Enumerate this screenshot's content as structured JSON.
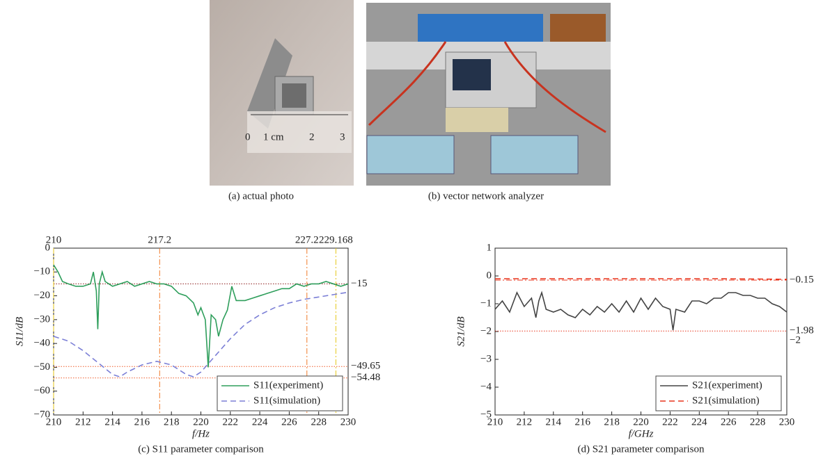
{
  "photos": [
    {
      "caption": "(a) actual photo"
    },
    {
      "caption": "(b) vector network analyzer"
    }
  ],
  "chart_data": [
    {
      "type": "line",
      "caption": "(c) S11 parameter comparison",
      "xlabel": "f/Hz",
      "ylabel": "S11/dB",
      "xlim": [
        210,
        230
      ],
      "ylim": [
        -70,
        0
      ],
      "xticks": [
        210,
        212,
        214,
        216,
        218,
        220,
        222,
        224,
        226,
        228,
        230
      ],
      "yticks": [
        0,
        {
          "value": -10,
          "label": "−10"
        },
        {
          "value": -20,
          "label": "−20"
        },
        {
          "value": -30,
          "label": "−30"
        },
        {
          "value": -40,
          "label": "−40"
        },
        {
          "value": -50,
          "label": "−50"
        },
        {
          "value": -60,
          "label": "−60"
        },
        {
          "value": -70,
          "label": "−70"
        }
      ],
      "legend": "lower right",
      "series": [
        {
          "name": "S11(experiment)",
          "color": "#2e9e5b",
          "style": "solid",
          "x": [
            210,
            210.3,
            210.6,
            211,
            211.5,
            212,
            212.5,
            212.7,
            212.9,
            213,
            213.1,
            213.3,
            213.5,
            214,
            214.5,
            215,
            215.5,
            216,
            216.5,
            217,
            217.5,
            218,
            218.5,
            219,
            219.5,
            219.8,
            220,
            220.3,
            220.5,
            220.7,
            221,
            221.2,
            221.5,
            221.8,
            222.1,
            222.4,
            223,
            223.5,
            224,
            224.5,
            225,
            225.5,
            226,
            226.5,
            227,
            227.5,
            228,
            228.5,
            229,
            229.5,
            230
          ],
          "values": [
            -7,
            -10,
            -14,
            -15,
            -16,
            -16,
            -15,
            -10,
            -18,
            -34,
            -15,
            -10,
            -14,
            -16,
            -15,
            -14,
            -16,
            -15,
            -14,
            -15,
            -15,
            -16,
            -19,
            -20,
            -23,
            -28,
            -25,
            -30,
            -50,
            -28,
            -30,
            -37,
            -30,
            -26,
            -16,
            -22,
            -22,
            -21,
            -20,
            -19,
            -18,
            -17,
            -17,
            -15,
            -16,
            -15,
            -15,
            -14,
            -15,
            -16,
            -15
          ]
        },
        {
          "name": "S11(simulation)",
          "color": "#7b7fd6",
          "style": "dashed",
          "x": [
            210,
            211,
            212,
            213,
            214,
            214.5,
            215,
            216,
            217,
            218,
            219,
            219.5,
            220,
            221,
            222,
            223,
            224,
            225,
            226,
            227,
            228,
            229,
            230
          ],
          "values": [
            -37,
            -39,
            -43,
            -48,
            -53,
            -54,
            -52,
            -49,
            -47.5,
            -49,
            -53,
            -54,
            -52,
            -45,
            -38,
            -32,
            -28,
            -25,
            -23,
            -21.5,
            -20.5,
            -19.5,
            -18.5
          ]
        }
      ],
      "hlines": [
        {
          "value": -15,
          "label": "−15",
          "color": "#8b1a1a",
          "style": "dotted"
        },
        {
          "value": -49.65,
          "label": "−49.65",
          "color": "#f05a28",
          "style": "dotted"
        },
        {
          "value": -54.48,
          "label": "−54.48",
          "color": "#f05a28",
          "style": "dotted"
        }
      ],
      "vlines": [
        {
          "value": 210,
          "color": "#e6c619"
        },
        {
          "value": 217.2,
          "color": "#f07a2a"
        },
        {
          "value": 227.2,
          "color": "#f07a2a"
        },
        {
          "value": 229.168,
          "color": "#e6c619"
        }
      ]
    },
    {
      "type": "line",
      "caption": "(d) S21 parameter comparison",
      "xlabel": "f/GHz",
      "ylabel": "S21/dB",
      "xlim": [
        210,
        230
      ],
      "ylim": [
        -5,
        1
      ],
      "xticks": [
        210,
        212,
        214,
        216,
        218,
        220,
        222,
        224,
        226,
        228,
        230
      ],
      "yticks": [
        1,
        0,
        {
          "value": -1,
          "label": "−1"
        },
        {
          "value": -2,
          "label": "−2"
        },
        {
          "value": -3,
          "label": "−3"
        },
        {
          "value": -4,
          "label": "−4"
        },
        {
          "value": -5,
          "label": "−5"
        }
      ],
      "legend": "lower right",
      "series": [
        {
          "name": "S21(experiment)",
          "color": "#444444",
          "style": "solid",
          "x": [
            210,
            210.5,
            211,
            211.5,
            212,
            212.5,
            212.8,
            213,
            213.2,
            213.5,
            214,
            214.5,
            215,
            215.5,
            216,
            216.5,
            217,
            217.5,
            218,
            218.5,
            219,
            219.5,
            220,
            220.5,
            221,
            221.5,
            222,
            222.2,
            222.4,
            223,
            223.5,
            224,
            224.5,
            225,
            225.5,
            226,
            226.5,
            227,
            227.5,
            228,
            228.5,
            229,
            229.5,
            230
          ],
          "values": [
            -1.2,
            -0.9,
            -1.3,
            -0.6,
            -1.1,
            -0.8,
            -1.5,
            -0.9,
            -0.6,
            -1.2,
            -1.3,
            -1.2,
            -1.4,
            -1.5,
            -1.2,
            -1.4,
            -1.1,
            -1.3,
            -1.0,
            -1.3,
            -0.9,
            -1.3,
            -0.8,
            -1.2,
            -0.8,
            -1.1,
            -1.2,
            -1.95,
            -1.2,
            -1.3,
            -0.9,
            -0.9,
            -1.0,
            -0.8,
            -0.8,
            -0.6,
            -0.6,
            -0.7,
            -0.7,
            -0.8,
            -0.8,
            -1.0,
            -1.1,
            -1.3
          ]
        },
        {
          "name": "S21(simulation)",
          "color": "#e8341c",
          "style": "dashed",
          "x": [
            210,
            215,
            220,
            225,
            230
          ],
          "values": [
            -0.1,
            -0.1,
            -0.1,
            -0.1,
            -0.12
          ]
        }
      ],
      "hlines": [
        {
          "value": -0.15,
          "label": "−0.15",
          "color": "#e8341c",
          "style": "dashdot"
        },
        {
          "value": -1.98,
          "label": "−1.98",
          "color": "#e8341c",
          "style": "dotted"
        },
        {
          "value": -2,
          "label": "−2",
          "color": "#f07a2a",
          "style": "none"
        }
      ]
    }
  ]
}
